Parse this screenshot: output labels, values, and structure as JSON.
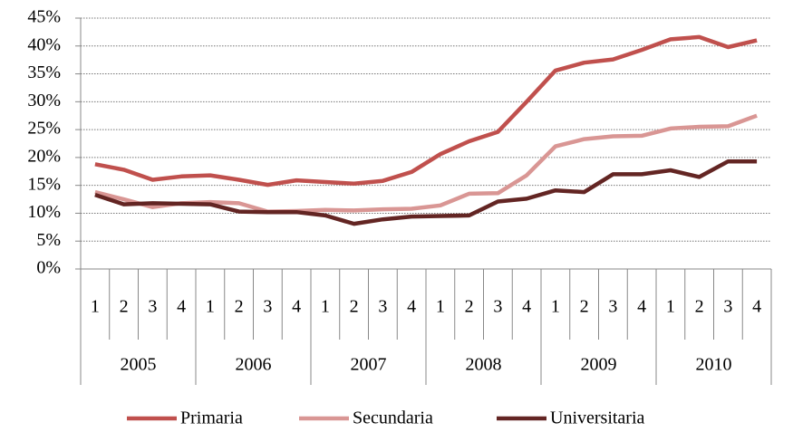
{
  "chart_data": {
    "type": "line",
    "categories": [
      "1",
      "2",
      "3",
      "4",
      "1",
      "2",
      "3",
      "4",
      "1",
      "2",
      "3",
      "4",
      "1",
      "2",
      "3",
      "4",
      "1",
      "2",
      "3",
      "4",
      "1",
      "2",
      "3",
      "4"
    ],
    "category_groups": [
      "2005",
      "2006",
      "2007",
      "2008",
      "2009",
      "2010"
    ],
    "series": [
      {
        "name": "Primaria",
        "color": "#c0504d",
        "values": [
          18.8,
          17.8,
          16.0,
          16.6,
          16.8,
          16.0,
          15.1,
          15.9,
          15.6,
          15.3,
          15.8,
          17.4,
          20.6,
          22.9,
          24.6,
          30.0,
          35.6,
          37.0,
          37.6,
          39.3,
          41.2,
          41.6,
          39.8,
          41.0
        ]
      },
      {
        "name": "Secundaria",
        "color": "#d99694",
        "values": [
          13.8,
          12.5,
          11.1,
          11.8,
          12.0,
          11.8,
          10.3,
          10.4,
          10.6,
          10.5,
          10.7,
          10.8,
          11.4,
          13.5,
          13.6,
          16.8,
          22.0,
          23.3,
          23.8,
          23.9,
          25.2,
          25.5,
          25.6,
          27.5
        ]
      },
      {
        "name": "Universitaria",
        "color": "#632523",
        "values": [
          13.3,
          11.6,
          11.8,
          11.7,
          11.6,
          10.3,
          10.2,
          10.2,
          9.6,
          8.1,
          8.9,
          9.4,
          9.5,
          9.6,
          12.1,
          12.6,
          14.1,
          13.8,
          17.0,
          17.0,
          17.7,
          16.5,
          19.3,
          19.3
        ]
      }
    ],
    "ylim": [
      0,
      45
    ],
    "yticks": [
      {
        "value": 0,
        "label": "0%"
      },
      {
        "value": 5,
        "label": "5%"
      },
      {
        "value": 10,
        "label": "10%"
      },
      {
        "value": 15,
        "label": "15%"
      },
      {
        "value": 20,
        "label": "20%"
      },
      {
        "value": 25,
        "label": "25%"
      },
      {
        "value": 30,
        "label": "30%"
      },
      {
        "value": 35,
        "label": "35%"
      },
      {
        "value": 40,
        "label": "40%"
      },
      {
        "value": 45,
        "label": "45%"
      }
    ],
    "grid": true,
    "legend": "bottom"
  }
}
